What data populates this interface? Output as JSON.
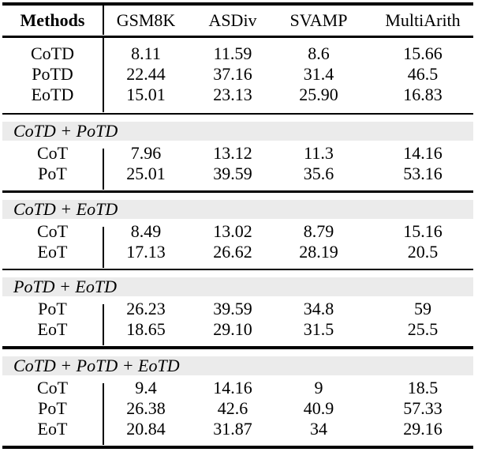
{
  "table": {
    "header": {
      "methods_label": "Methods",
      "columns": [
        "GSM8K",
        "ASDiv",
        "SVAMP",
        "MultiArith"
      ]
    },
    "sections": [
      {
        "banner": null,
        "rows": [
          {
            "method": "CoTD",
            "values": [
              "8.11",
              "11.59",
              "8.6",
              "15.66"
            ]
          },
          {
            "method": "PoTD",
            "values": [
              "22.44",
              "37.16",
              "31.4",
              "46.5"
            ]
          },
          {
            "method": "EoTD",
            "values": [
              "15.01",
              "23.13",
              "25.90",
              "16.83"
            ]
          }
        ]
      },
      {
        "banner": "CoTD + PoTD",
        "rows": [
          {
            "method": "CoT",
            "values": [
              "7.96",
              "13.12",
              "11.3",
              "14.16"
            ]
          },
          {
            "method": "PoT",
            "values": [
              "25.01",
              "39.59",
              "35.6",
              "53.16"
            ]
          }
        ]
      },
      {
        "banner": "CoTD + EoTD",
        "rows": [
          {
            "method": "CoT",
            "values": [
              "8.49",
              "13.02",
              "8.79",
              "15.16"
            ]
          },
          {
            "method": "EoT",
            "values": [
              "17.13",
              "26.62",
              "28.19",
              "20.5"
            ]
          }
        ]
      },
      {
        "banner": "PoTD + EoTD",
        "rows": [
          {
            "method": "PoT",
            "values": [
              "26.23",
              "39.59",
              "34.8",
              "59"
            ]
          },
          {
            "method": "EoT",
            "values": [
              "18.65",
              "29.10",
              "31.5",
              "25.5"
            ]
          }
        ]
      },
      {
        "banner": "CoTD + PoTD + EoTD",
        "rows": [
          {
            "method": "CoT",
            "values": [
              "9.4",
              "14.16",
              "9",
              "18.5"
            ]
          },
          {
            "method": "PoT",
            "values": [
              "26.38",
              "42.6",
              "40.9",
              "57.33"
            ]
          },
          {
            "method": "EoT",
            "values": [
              "20.84",
              "31.87",
              "34",
              "29.16"
            ]
          }
        ]
      }
    ],
    "colors": {
      "banner_background": "#ebebeb",
      "rule": "#000000",
      "text": "#000000",
      "page_background": "#ffffff"
    }
  }
}
